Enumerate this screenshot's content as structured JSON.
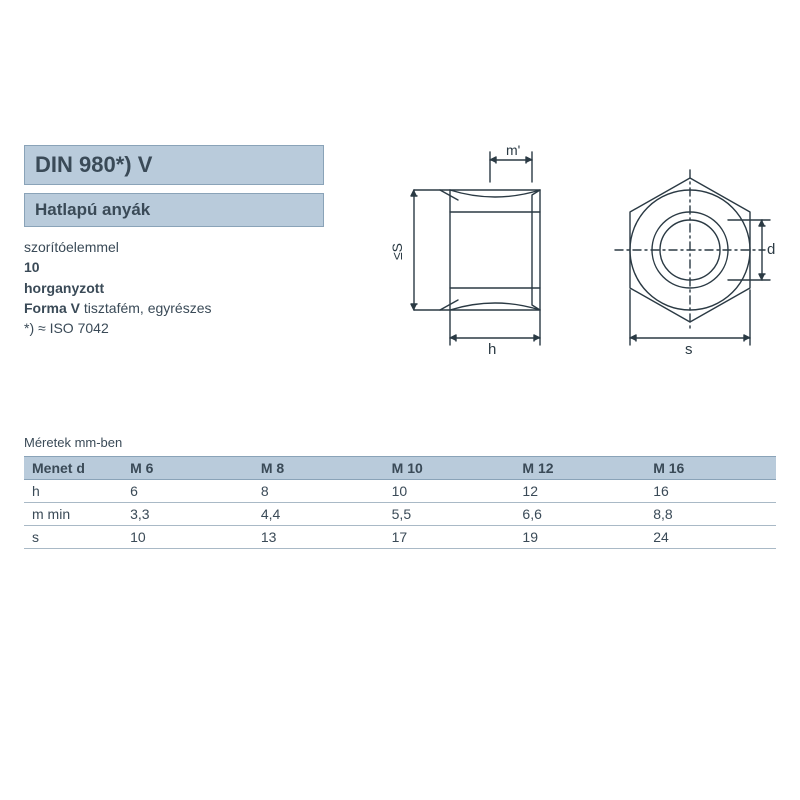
{
  "colors": {
    "bar_bg": "#b9cbdb",
    "bar_border": "#8aa3b8",
    "text": "#3a4a57",
    "row_border": "#a9b9c6",
    "diagram_stroke": "#2b3a44"
  },
  "header": {
    "title": "DIN 980*) V",
    "subtitle": "Hatlapú anyák"
  },
  "description": {
    "line1": "szorítóelemmel",
    "line2_bold": "10",
    "line3_bold": "horganyzott",
    "line4_bold_prefix": "Forma V",
    "line4_rest": " tisztafém, egyrészes",
    "line5": "*) ≈ ISO 7042"
  },
  "diagram_labels": {
    "m_prime": "m'",
    "s_le": "≤S",
    "h": "h",
    "d": "d",
    "s": "s"
  },
  "table": {
    "caption": "Méretek mm-ben",
    "header_label": "Menet d",
    "columns": [
      "M 6",
      "M 8",
      "M 10",
      "M 12",
      "M 16"
    ],
    "rows": [
      {
        "label": "h",
        "values": [
          "6",
          "8",
          "10",
          "12",
          "16"
        ]
      },
      {
        "label": "m min",
        "values": [
          "3,3",
          "4,4",
          "5,5",
          "6,6",
          "8,8"
        ]
      },
      {
        "label": "s",
        "values": [
          "10",
          "13",
          "17",
          "19",
          "24"
        ]
      }
    ]
  }
}
